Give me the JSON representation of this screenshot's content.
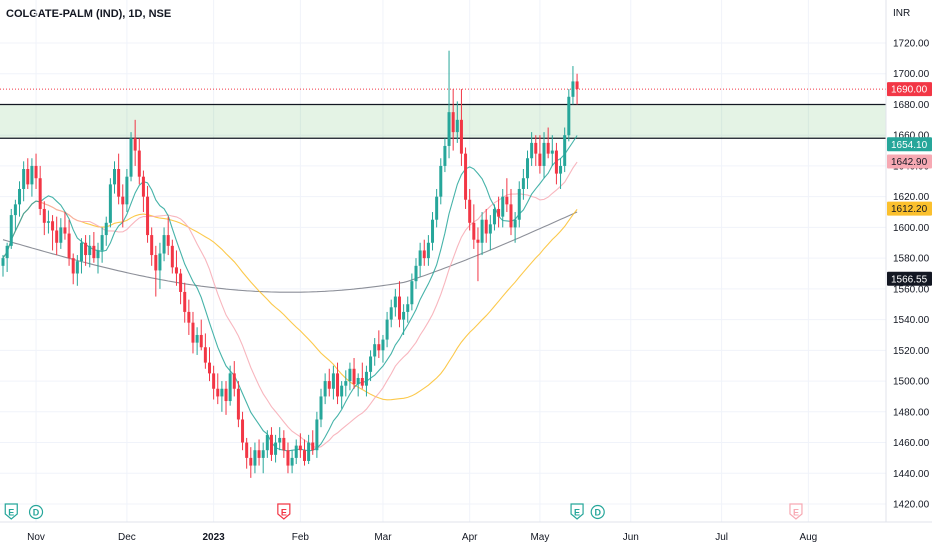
{
  "header": {
    "symbol": "COLGATE-PALM (IND), 1D, NSE"
  },
  "chart_data": {
    "type": "candlestick",
    "currency": "INR",
    "ylim": [
      1410,
      1730
    ],
    "yticks": [
      "1420.00",
      "1440.00",
      "1460.00",
      "1480.00",
      "1500.00",
      "1520.00",
      "1540.00",
      "1560.00",
      "1580.00",
      "1600.00",
      "1620.00",
      "1640.00",
      "1660.00",
      "1680.00",
      "1700.00",
      "1720.00"
    ],
    "ytick_values": [
      1420,
      1440,
      1460,
      1480,
      1500,
      1520,
      1540,
      1560,
      1580,
      1600,
      1620,
      1640,
      1660,
      1680,
      1700,
      1720
    ],
    "xticks": [
      {
        "label": "Nov",
        "bar": 8
      },
      {
        "label": "Dec",
        "bar": 30
      },
      {
        "label": "2023",
        "bar": 51
      },
      {
        "label": "Feb",
        "bar": 72
      },
      {
        "label": "Mar",
        "bar": 92
      },
      {
        "label": "Apr",
        "bar": 113
      },
      {
        "label": "May",
        "bar": 130
      },
      {
        "label": "Jun",
        "bar": 152
      },
      {
        "label": "Jul",
        "bar": 174
      },
      {
        "label": "Aug",
        "bar": 195
      }
    ],
    "zone": {
      "upper": 1680,
      "lower": 1658,
      "color": "#4caf50"
    },
    "price_lines": [
      {
        "value": 1690.0,
        "label": "1690.00",
        "bg": "#f23645",
        "fg": "#ffffff",
        "style": "dotted",
        "color": "#f23645"
      }
    ],
    "price_tags": [
      {
        "value": 1690.0,
        "label": "1690.00",
        "bg": "#f23645",
        "fg": "#ffffff"
      },
      {
        "value": 1654.1,
        "label": "1654.10",
        "bg": "#26a69a",
        "fg": "#ffffff"
      },
      {
        "value": 1642.9,
        "label": "1642.90",
        "bg": "#f7a9b3",
        "fg": "#131722"
      },
      {
        "value": 1612.2,
        "label": "1612.20",
        "bg": "#fbc02d",
        "fg": "#131722"
      },
      {
        "value": 1566.55,
        "label": "1566.55",
        "bg": "#131722",
        "fg": "#ffffff"
      }
    ],
    "events": [
      {
        "bar": 2,
        "type": "E",
        "color": "#26a69a"
      },
      {
        "bar": 8,
        "type": "D",
        "color": "#26a69a"
      },
      {
        "bar": 68,
        "type": "E",
        "color": "#f23645"
      },
      {
        "bar": 139,
        "type": "E",
        "color": "#26a69a"
      },
      {
        "bar": 144,
        "type": "D",
        "color": "#26a69a"
      },
      {
        "bar": 192,
        "type": "E",
        "color": "#f7a9b3"
      }
    ],
    "colors": {
      "up": "#26a69a",
      "down": "#f23645",
      "ma10": "#26a69a",
      "ma20": "#f7a9b3",
      "ma50": "#fbc02d",
      "ma200": "#787b86"
    },
    "candles": [
      [
        1575,
        1582,
        1568,
        1580
      ],
      [
        1580,
        1590,
        1571,
        1588
      ],
      [
        1588,
        1612,
        1586,
        1608
      ],
      [
        1608,
        1618,
        1598,
        1615
      ],
      [
        1615,
        1630,
        1607,
        1625
      ],
      [
        1625,
        1643,
        1617,
        1638
      ],
      [
        1638,
        1645,
        1625,
        1628
      ],
      [
        1628,
        1645,
        1620,
        1640
      ],
      [
        1640,
        1648,
        1625,
        1632
      ],
      [
        1632,
        1640,
        1608,
        1612
      ],
      [
        1612,
        1617,
        1595,
        1603
      ],
      [
        1603,
        1611,
        1596,
        1604
      ],
      [
        1604,
        1608,
        1585,
        1598
      ],
      [
        1598,
        1607,
        1582,
        1590
      ],
      [
        1590,
        1606,
        1586,
        1600
      ],
      [
        1600,
        1610,
        1592,
        1596
      ],
      [
        1596,
        1605,
        1575,
        1580
      ],
      [
        1580,
        1583,
        1563,
        1570
      ],
      [
        1570,
        1582,
        1562,
        1578
      ],
      [
        1578,
        1593,
        1570,
        1590
      ],
      [
        1590,
        1595,
        1575,
        1582
      ],
      [
        1582,
        1595,
        1574,
        1588
      ],
      [
        1588,
        1597,
        1577,
        1580
      ],
      [
        1580,
        1590,
        1570,
        1585
      ],
      [
        1585,
        1600,
        1577,
        1595
      ],
      [
        1595,
        1607,
        1588,
        1603
      ],
      [
        1603,
        1632,
        1600,
        1628
      ],
      [
        1628,
        1643,
        1622,
        1638
      ],
      [
        1638,
        1648,
        1615,
        1620
      ],
      [
        1620,
        1628,
        1600,
        1615
      ],
      [
        1615,
        1638,
        1610,
        1633
      ],
      [
        1633,
        1662,
        1630,
        1658
      ],
      [
        1658,
        1670,
        1640,
        1650
      ],
      [
        1650,
        1658,
        1628,
        1633
      ],
      [
        1633,
        1637,
        1610,
        1620
      ],
      [
        1620,
        1627,
        1590,
        1595
      ],
      [
        1595,
        1600,
        1575,
        1582
      ],
      [
        1582,
        1588,
        1555,
        1572
      ],
      [
        1572,
        1590,
        1560,
        1583
      ],
      [
        1583,
        1600,
        1578,
        1595
      ],
      [
        1595,
        1607,
        1582,
        1588
      ],
      [
        1588,
        1592,
        1570,
        1574
      ],
      [
        1574,
        1585,
        1562,
        1570
      ],
      [
        1570,
        1573,
        1550,
        1558
      ],
      [
        1558,
        1564,
        1538,
        1545
      ],
      [
        1545,
        1553,
        1530,
        1538
      ],
      [
        1538,
        1545,
        1518,
        1525
      ],
      [
        1525,
        1535,
        1517,
        1530
      ],
      [
        1530,
        1540,
        1520,
        1522
      ],
      [
        1522,
        1531,
        1508,
        1512
      ],
      [
        1512,
        1522,
        1500,
        1505
      ],
      [
        1505,
        1510,
        1488,
        1495
      ],
      [
        1495,
        1505,
        1485,
        1490
      ],
      [
        1490,
        1500,
        1480,
        1495
      ],
      [
        1495,
        1500,
        1478,
        1487
      ],
      [
        1487,
        1510,
        1484,
        1505
      ],
      [
        1505,
        1513,
        1490,
        1495
      ],
      [
        1495,
        1500,
        1470,
        1475
      ],
      [
        1475,
        1480,
        1455,
        1460
      ],
      [
        1460,
        1463,
        1443,
        1450
      ],
      [
        1450,
        1457,
        1437,
        1445
      ],
      [
        1445,
        1460,
        1440,
        1455
      ],
      [
        1455,
        1462,
        1445,
        1450
      ],
      [
        1450,
        1460,
        1440,
        1455
      ],
      [
        1455,
        1468,
        1450,
        1465
      ],
      [
        1465,
        1470,
        1448,
        1452
      ],
      [
        1452,
        1465,
        1447,
        1460
      ],
      [
        1460,
        1470,
        1455,
        1463
      ],
      [
        1463,
        1468,
        1450,
        1455
      ],
      [
        1455,
        1460,
        1440,
        1445
      ],
      [
        1445,
        1455,
        1440,
        1450
      ],
      [
        1450,
        1462,
        1446,
        1458
      ],
      [
        1458,
        1466,
        1450,
        1455
      ],
      [
        1455,
        1462,
        1445,
        1448
      ],
      [
        1448,
        1465,
        1446,
        1460
      ],
      [
        1460,
        1468,
        1452,
        1455
      ],
      [
        1455,
        1480,
        1450,
        1475
      ],
      [
        1475,
        1495,
        1470,
        1490
      ],
      [
        1490,
        1505,
        1485,
        1500
      ],
      [
        1500,
        1508,
        1490,
        1495
      ],
      [
        1495,
        1510,
        1488,
        1505
      ],
      [
        1505,
        1512,
        1485,
        1490
      ],
      [
        1490,
        1500,
        1482,
        1497
      ],
      [
        1497,
        1507,
        1490,
        1500
      ],
      [
        1500,
        1512,
        1494,
        1508
      ],
      [
        1508,
        1515,
        1495,
        1498
      ],
      [
        1498,
        1505,
        1490,
        1502
      ],
      [
        1502,
        1512,
        1495,
        1497
      ],
      [
        1497,
        1510,
        1490,
        1506
      ],
      [
        1506,
        1520,
        1500,
        1516
      ],
      [
        1516,
        1528,
        1510,
        1524
      ],
      [
        1524,
        1533,
        1515,
        1520
      ],
      [
        1520,
        1530,
        1512,
        1527
      ],
      [
        1527,
        1545,
        1522,
        1540
      ],
      [
        1540,
        1553,
        1535,
        1548
      ],
      [
        1548,
        1560,
        1542,
        1555
      ],
      [
        1555,
        1565,
        1535,
        1540
      ],
      [
        1540,
        1550,
        1530,
        1545
      ],
      [
        1545,
        1555,
        1538,
        1550
      ],
      [
        1550,
        1570,
        1546,
        1565
      ],
      [
        1565,
        1580,
        1560,
        1575
      ],
      [
        1575,
        1590,
        1568,
        1585
      ],
      [
        1585,
        1592,
        1575,
        1580
      ],
      [
        1580,
        1595,
        1575,
        1590
      ],
      [
        1590,
        1610,
        1585,
        1605
      ],
      [
        1605,
        1625,
        1600,
        1620
      ],
      [
        1620,
        1645,
        1615,
        1640
      ],
      [
        1640,
        1658,
        1636,
        1653
      ],
      [
        1653,
        1715,
        1645,
        1675
      ],
      [
        1675,
        1690,
        1650,
        1662
      ],
      [
        1662,
        1682,
        1655,
        1670
      ],
      [
        1670,
        1690,
        1640,
        1648
      ],
      [
        1648,
        1652,
        1612,
        1618
      ],
      [
        1618,
        1625,
        1598,
        1603
      ],
      [
        1603,
        1615,
        1586,
        1592
      ],
      [
        1592,
        1600,
        1565,
        1590
      ],
      [
        1590,
        1610,
        1582,
        1605
      ],
      [
        1605,
        1612,
        1590,
        1596
      ],
      [
        1596,
        1608,
        1585,
        1602
      ],
      [
        1602,
        1615,
        1598,
        1612
      ],
      [
        1612,
        1620,
        1600,
        1607
      ],
      [
        1607,
        1625,
        1600,
        1620
      ],
      [
        1620,
        1632,
        1610,
        1615
      ],
      [
        1615,
        1625,
        1595,
        1600
      ],
      [
        1600,
        1610,
        1590,
        1605
      ],
      [
        1605,
        1630,
        1600,
        1625
      ],
      [
        1625,
        1638,
        1618,
        1632
      ],
      [
        1632,
        1650,
        1625,
        1645
      ],
      [
        1645,
        1662,
        1640,
        1655
      ],
      [
        1655,
        1660,
        1640,
        1648
      ],
      [
        1648,
        1660,
        1635,
        1640
      ],
      [
        1640,
        1662,
        1632,
        1655
      ],
      [
        1655,
        1665,
        1645,
        1648
      ],
      [
        1648,
        1660,
        1640,
        1650
      ],
      [
        1650,
        1655,
        1628,
        1635
      ],
      [
        1635,
        1645,
        1625,
        1640
      ],
      [
        1640,
        1665,
        1636,
        1660
      ],
      [
        1660,
        1690,
        1656,
        1685
      ],
      [
        1685,
        1705,
        1680,
        1695
      ],
      [
        1695,
        1700,
        1680,
        1690
      ]
    ]
  }
}
